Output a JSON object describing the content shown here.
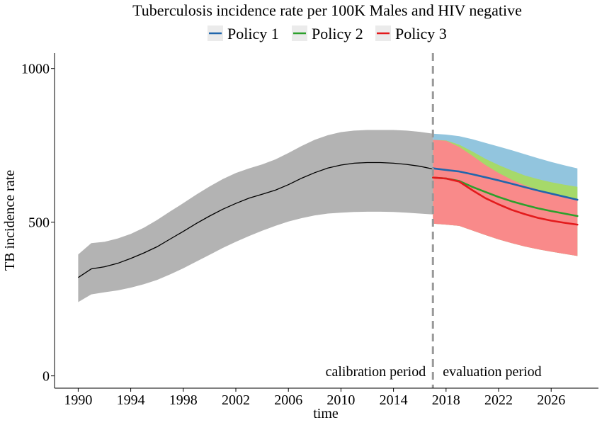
{
  "chart_data": {
    "type": "line",
    "title": "Tuberculosis incidence rate per 100K Males and HIV negative",
    "xlabel": "time",
    "ylabel": "TB incidence rate",
    "xlim": [
      1988.2,
      2029.6
    ],
    "ylim": [
      -40,
      1050
    ],
    "x_ticks": [
      1990,
      1994,
      1998,
      2002,
      2006,
      2010,
      2014,
      2018,
      2022,
      2026
    ],
    "y_ticks": [
      0,
      500,
      1000
    ],
    "grid": false,
    "legend_position": "top",
    "split_year": 2017,
    "annotations": [
      "calibration period",
      "evaluation period"
    ],
    "calibration": {
      "x": [
        1990,
        1991,
        1992,
        1993,
        1994,
        1995,
        1996,
        1997,
        1998,
        1999,
        2000,
        2001,
        2002,
        2003,
        2004,
        2005,
        2006,
        2007,
        2008,
        2009,
        2010,
        2011,
        2012,
        2013,
        2014,
        2015,
        2016,
        2017
      ],
      "mean": [
        320,
        348,
        355,
        366,
        382,
        400,
        420,
        445,
        470,
        496,
        520,
        542,
        561,
        578,
        591,
        604,
        622,
        643,
        661,
        676,
        686,
        692,
        694,
        694,
        692,
        688,
        682,
        673
      ],
      "lower": [
        240,
        265,
        272,
        278,
        287,
        298,
        312,
        330,
        350,
        372,
        394,
        416,
        436,
        455,
        472,
        488,
        502,
        513,
        522,
        528,
        531,
        533,
        534,
        534,
        533,
        531,
        528,
        525
      ],
      "upper": [
        395,
        432,
        436,
        447,
        462,
        482,
        507,
        535,
        562,
        590,
        616,
        640,
        660,
        675,
        688,
        704,
        725,
        748,
        768,
        783,
        793,
        798,
        800,
        800,
        800,
        798,
        794,
        788
      ],
      "color": "#000000",
      "band_color": "#b3b3b3"
    },
    "series": [
      {
        "name": "Policy 1",
        "color": "#2166ac",
        "band_color": "#92c5de",
        "x": [
          2017,
          2018,
          2019,
          2020,
          2021,
          2022,
          2023,
          2024,
          2025,
          2026,
          2027,
          2028
        ],
        "mean": [
          675,
          670,
          665,
          656,
          646,
          636,
          625,
          614,
          603,
          593,
          583,
          573
        ],
        "lower": [
          495,
          492,
          488,
          473,
          458,
          444,
          432,
          421,
          412,
          404,
          397,
          390
        ],
        "upper": [
          788,
          785,
          780,
          770,
          758,
          746,
          734,
          721,
          708,
          696,
          685,
          675
        ]
      },
      {
        "name": "Policy 2",
        "color": "#2ca02c",
        "band_color": "#a6d96a",
        "x": [
          2017,
          2018,
          2019,
          2020,
          2021,
          2022,
          2023,
          2024,
          2025,
          2026,
          2027,
          2028
        ],
        "mean": [
          645,
          642,
          634,
          615,
          598,
          582,
          568,
          556,
          545,
          536,
          528,
          520
        ],
        "lower": [
          495,
          492,
          488,
          473,
          458,
          444,
          432,
          421,
          412,
          404,
          397,
          390
        ],
        "upper": [
          768,
          766,
          752,
          730,
          706,
          686,
          668,
          652,
          640,
          630,
          622,
          615
        ]
      },
      {
        "name": "Policy 3",
        "color": "#e31a1c",
        "band_color": "#f98a8a",
        "x": [
          2017,
          2018,
          2019,
          2020,
          2021,
          2022,
          2023,
          2024,
          2025,
          2026,
          2027,
          2028
        ],
        "mean": [
          645,
          642,
          632,
          604,
          578,
          558,
          540,
          526,
          514,
          505,
          498,
          492
        ],
        "lower": [
          495,
          492,
          488,
          473,
          458,
          444,
          432,
          421,
          412,
          404,
          397,
          390
        ],
        "upper": [
          768,
          765,
          745,
          716,
          686,
          660,
          638,
          620,
          606,
          594,
          583,
          574
        ]
      }
    ]
  }
}
